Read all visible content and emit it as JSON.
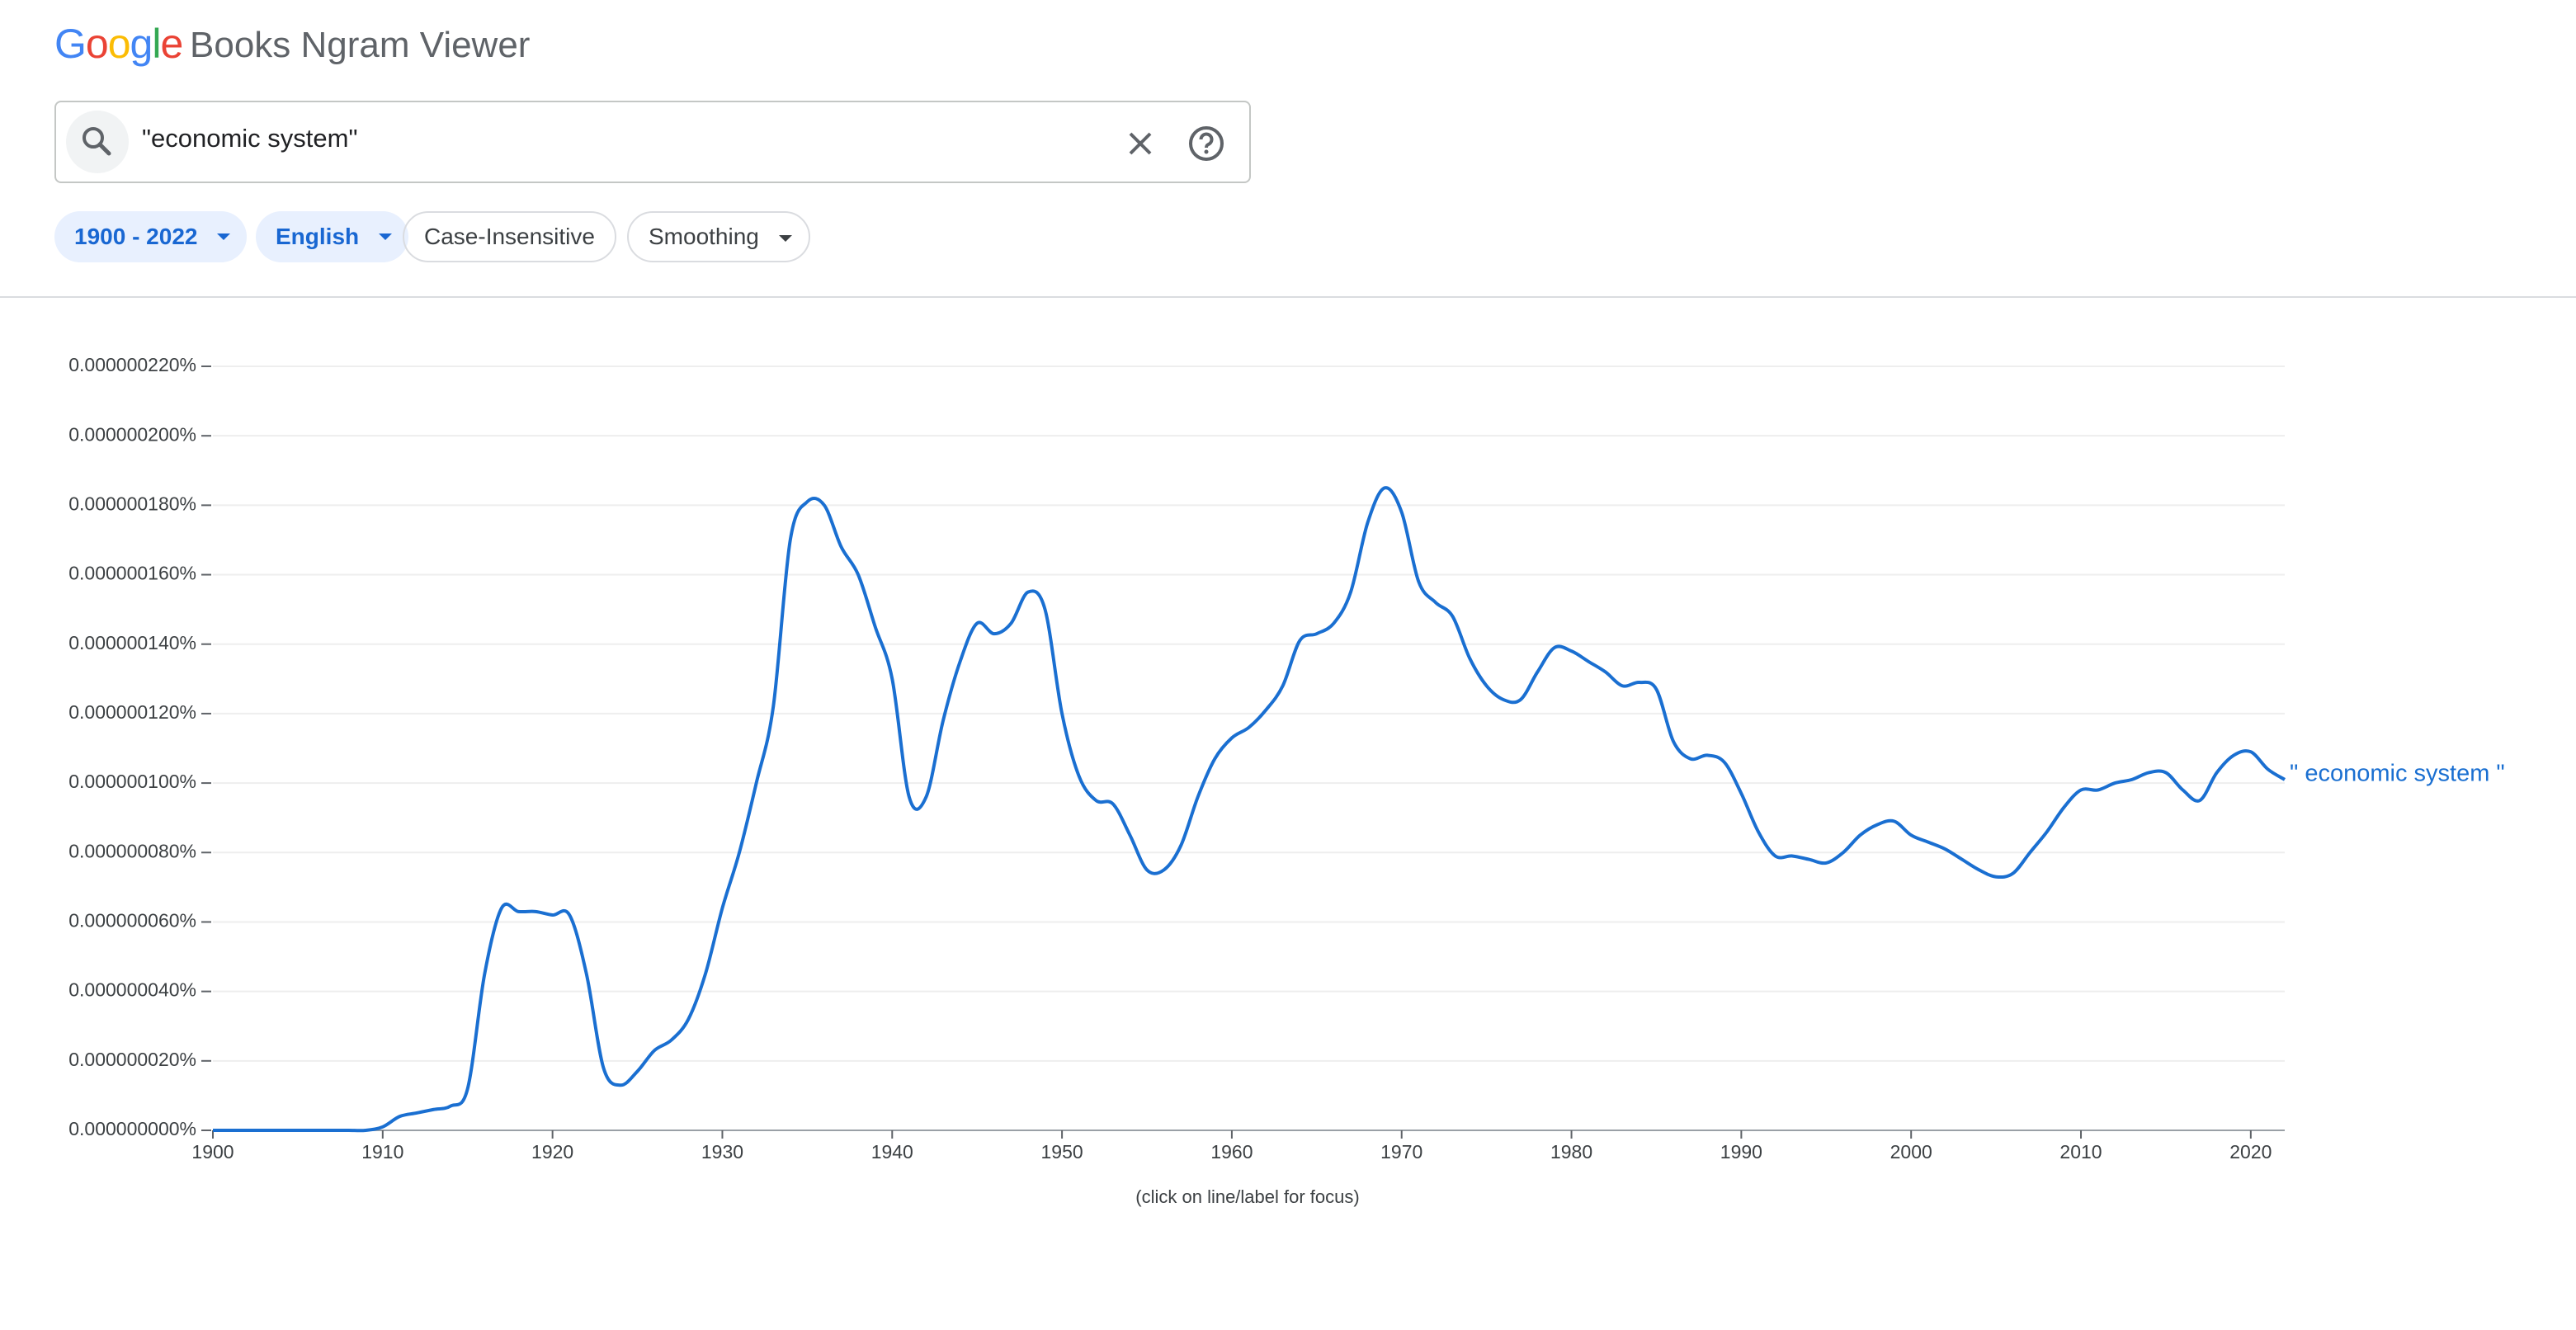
{
  "header": {
    "logo": "Google",
    "product": "Books Ngram Viewer"
  },
  "search": {
    "query": "\"economic system\""
  },
  "filters": {
    "years": "1900 - 2022",
    "corpus": "English",
    "case": "Case-Insensitive",
    "smoothing": "Smoothing"
  },
  "footer_note": "(click on line/label for focus)",
  "chart_data": {
    "type": "line",
    "xlim": [
      1900,
      2022
    ],
    "xticks": [
      1900,
      1910,
      1920,
      1930,
      1940,
      1950,
      1960,
      1970,
      1980,
      1990,
      2000,
      2010,
      2020
    ],
    "ylim": [
      0,
      2.2e-07
    ],
    "yticks": [
      {
        "value": 0,
        "label": "0.000000000%"
      },
      {
        "value": 2e-08,
        "label": "0.000000020%"
      },
      {
        "value": 4e-08,
        "label": "0.000000040%"
      },
      {
        "value": 6e-08,
        "label": "0.000000060%"
      },
      {
        "value": 8e-08,
        "label": "0.000000080%"
      },
      {
        "value": 1e-07,
        "label": "0.000000100%"
      },
      {
        "value": 1.2e-07,
        "label": "0.000000120%"
      },
      {
        "value": 1.4e-07,
        "label": "0.000000140%"
      },
      {
        "value": 1.6e-07,
        "label": "0.000000160%"
      },
      {
        "value": 1.8e-07,
        "label": "0.000000180%"
      },
      {
        "value": 2e-07,
        "label": "0.000000200%"
      },
      {
        "value": 2.2e-07,
        "label": "0.000000220%"
      }
    ],
    "grid": true,
    "x": [
      1900,
      1901,
      1902,
      1903,
      1904,
      1905,
      1906,
      1907,
      1908,
      1909,
      1910,
      1911,
      1912,
      1913,
      1914,
      1915,
      1916,
      1917,
      1918,
      1919,
      1920,
      1921,
      1922,
      1923,
      1924,
      1925,
      1926,
      1927,
      1928,
      1929,
      1930,
      1931,
      1932,
      1933,
      1934,
      1935,
      1936,
      1937,
      1938,
      1939,
      1940,
      1941,
      1942,
      1943,
      1944,
      1945,
      1946,
      1947,
      1948,
      1949,
      1950,
      1951,
      1952,
      1953,
      1954,
      1955,
      1956,
      1957,
      1958,
      1959,
      1960,
      1961,
      1962,
      1963,
      1964,
      1965,
      1966,
      1967,
      1968,
      1969,
      1970,
      1971,
      1972,
      1973,
      1974,
      1975,
      1976,
      1977,
      1978,
      1979,
      1980,
      1981,
      1982,
      1983,
      1984,
      1985,
      1986,
      1987,
      1988,
      1989,
      1990,
      1991,
      1992,
      1993,
      1994,
      1995,
      1996,
      1997,
      1998,
      1999,
      2000,
      2001,
      2002,
      2003,
      2004,
      2005,
      2006,
      2007,
      2008,
      2009,
      2010,
      2011,
      2012,
      2013,
      2014,
      2015,
      2016,
      2017,
      2018,
      2019,
      2020,
      2021,
      2022
    ],
    "series": [
      {
        "name": "\" economic system \"",
        "color": "#1a6fd1",
        "values": [
          0,
          0,
          0,
          0,
          0,
          0,
          0,
          0,
          0,
          0,
          1e-09,
          4e-09,
          5e-09,
          6e-09,
          7e-09,
          1.2e-08,
          4.5e-08,
          6.4e-08,
          6.3e-08,
          6.3e-08,
          6.2e-08,
          6.2e-08,
          4.5e-08,
          1.8e-08,
          1.3e-08,
          1.7e-08,
          2.3e-08,
          2.6e-08,
          3.2e-08,
          4.5e-08,
          6.4e-08,
          8e-08,
          1e-07,
          1.22e-07,
          1.7e-07,
          1.81e-07,
          1.8e-07,
          1.68e-07,
          1.6e-07,
          1.45e-07,
          1.3e-07,
          9.6e-08,
          9.6e-08,
          1.18e-07,
          1.35e-07,
          1.46e-07,
          1.43e-07,
          1.46e-07,
          1.55e-07,
          1.5e-07,
          1.2e-07,
          1.02e-07,
          9.5e-08,
          9.4e-08,
          8.5e-08,
          7.5e-08,
          7.5e-08,
          8.2e-08,
          9.6e-08,
          1.07e-07,
          1.13e-07,
          1.16e-07,
          1.21e-07,
          1.28e-07,
          1.41e-07,
          1.43e-07,
          1.46e-07,
          1.55e-07,
          1.75e-07,
          1.85e-07,
          1.78e-07,
          1.58e-07,
          1.52e-07,
          1.48e-07,
          1.36e-07,
          1.28e-07,
          1.24e-07,
          1.24e-07,
          1.32e-07,
          1.39e-07,
          1.38e-07,
          1.35e-07,
          1.32e-07,
          1.28e-07,
          1.29e-07,
          1.27e-07,
          1.12e-07,
          1.07e-07,
          1.08e-07,
          1.06e-07,
          9.7e-08,
          8.6e-08,
          7.9e-08,
          7.9e-08,
          7.8e-08,
          7.7e-08,
          8e-08,
          8.5e-08,
          8.8e-08,
          8.9e-08,
          8.5e-08,
          8.3e-08,
          8.1e-08,
          7.8e-08,
          7.5e-08,
          7.3e-08,
          7.4e-08,
          8e-08,
          8.6e-08,
          9.3e-08,
          9.8e-08,
          9.8e-08,
          1e-07,
          1.01e-07,
          1.03e-07,
          1.03e-07,
          9.8e-08,
          9.5e-08,
          1.03e-07,
          1.08e-07,
          1.09e-07,
          1.04e-07,
          1.01e-07
        ]
      }
    ]
  }
}
